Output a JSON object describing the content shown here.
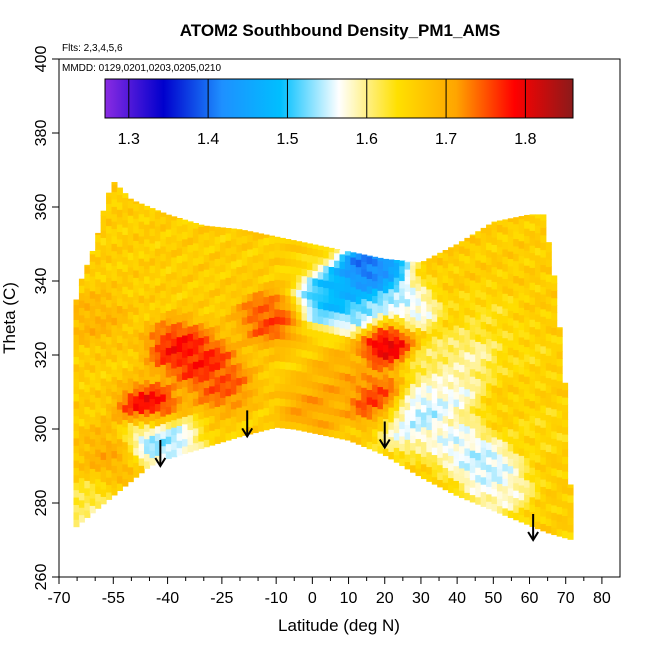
{
  "chart_data": {
    "type": "heatmap",
    "title": "ATOM2 Southbound Density_PM1_AMS",
    "subtitle_flights": "Flts: 2,3,4,5,6",
    "subtitle_dates": "MMDD: 0129,0201,0203,0205,0210",
    "xlabel": "Latitude (deg N)",
    "ylabel": "Theta (C)",
    "xlim": [
      -70,
      85
    ],
    "ylim": [
      260,
      400
    ],
    "x_ticks": [
      -70,
      -55,
      -40,
      -25,
      -10,
      0,
      10,
      20,
      30,
      40,
      50,
      60,
      70,
      80
    ],
    "x_minor_ticks": [
      -65,
      -60,
      -50,
      -45,
      -35,
      -30,
      -20,
      -15,
      -5,
      5,
      15,
      25,
      35,
      45,
      55,
      65,
      75
    ],
    "y_ticks": [
      260,
      280,
      300,
      320,
      340,
      360,
      380,
      400
    ],
    "colorbar": {
      "range": [
        1.27,
        1.86
      ],
      "ticks": [
        1.3,
        1.4,
        1.5,
        1.6,
        1.7,
        1.8
      ],
      "colors": [
        "#8a2be2",
        "#0000cd",
        "#1e90ff",
        "#00bfff",
        "#ffffff",
        "#ffe000",
        "#ffa500",
        "#ff0000",
        "#8b1a1a"
      ]
    },
    "arrows": [
      {
        "lat": -42,
        "theta": 290
      },
      {
        "lat": -18,
        "theta": 298
      },
      {
        "lat": 20,
        "theta": 295
      },
      {
        "lat": 61,
        "theta": 270
      }
    ],
    "field": {
      "top_boundary": [
        [
          -66,
          332
        ],
        [
          -64,
          340
        ],
        [
          -60,
          350
        ],
        [
          -57,
          362
        ],
        [
          -55,
          367
        ],
        [
          -50,
          362
        ],
        [
          -40,
          358
        ],
        [
          -30,
          355
        ],
        [
          -20,
          354
        ],
        [
          -10,
          352
        ],
        [
          0,
          350
        ],
        [
          10,
          348
        ],
        [
          20,
          346
        ],
        [
          30,
          345
        ],
        [
          40,
          350
        ],
        [
          50,
          356
        ],
        [
          60,
          358
        ],
        [
          64,
          358
        ],
        [
          67,
          340
        ],
        [
          70,
          310
        ],
        [
          72,
          270
        ]
      ],
      "bottom_boundary": [
        [
          -66,
          273
        ],
        [
          -60,
          278
        ],
        [
          -50,
          286
        ],
        [
          -45,
          290
        ],
        [
          -40,
          292
        ],
        [
          -30,
          295
        ],
        [
          -20,
          298
        ],
        [
          -10,
          300.5
        ],
        [
          -5,
          300
        ],
        [
          0,
          299
        ],
        [
          10,
          297
        ],
        [
          20,
          293
        ],
        [
          30,
          287
        ],
        [
          40,
          282
        ],
        [
          50,
          278
        ],
        [
          60,
          274
        ],
        [
          65,
          272
        ],
        [
          72,
          270
        ]
      ],
      "background_value": 1.66,
      "blobs": [
        {
          "lat": -30,
          "theta": 318,
          "value": 1.79
        },
        {
          "lat": -37,
          "theta": 322,
          "value": 1.8
        },
        {
          "lat": -25,
          "theta": 312,
          "value": 1.76
        },
        {
          "lat": -45,
          "theta": 305,
          "value": 1.83
        },
        {
          "lat": -12,
          "theta": 330,
          "value": 1.77
        },
        {
          "lat": 21,
          "theta": 324,
          "value": 1.84
        },
        {
          "lat": 18,
          "theta": 308,
          "value": 1.78
        },
        {
          "lat": -45,
          "theta": 298,
          "value": 1.5
        },
        {
          "lat": -40,
          "theta": 297,
          "value": 1.52
        },
        {
          "lat": 4,
          "theta": 335,
          "value": 1.47
        },
        {
          "lat": 9,
          "theta": 338,
          "value": 1.44
        },
        {
          "lat": 14,
          "theta": 332,
          "value": 1.5
        },
        {
          "lat": 18,
          "theta": 342,
          "value": 1.49
        },
        {
          "lat": 16,
          "theta": 343,
          "value": 1.28
        },
        {
          "lat": 26,
          "theta": 332,
          "value": 1.53
        },
        {
          "lat": 30,
          "theta": 305,
          "value": 1.52
        },
        {
          "lat": 26,
          "theta": 301,
          "value": 1.55
        },
        {
          "lat": 38,
          "theta": 310,
          "value": 1.55
        },
        {
          "lat": 40,
          "theta": 296,
          "value": 1.54
        },
        {
          "lat": 48,
          "theta": 290,
          "value": 1.52
        },
        {
          "lat": 52,
          "theta": 284,
          "value": 1.56
        },
        {
          "lat": 44,
          "theta": 320,
          "value": 1.58
        },
        {
          "lat": 33,
          "theta": 318,
          "value": 1.6
        },
        {
          "lat": 48,
          "theta": 330,
          "value": 1.63
        },
        {
          "lat": 58,
          "theta": 320,
          "value": 1.64
        },
        {
          "lat": 62,
          "theta": 300,
          "value": 1.64
        },
        {
          "lat": -62,
          "theta": 278,
          "value": 1.6
        },
        {
          "lat": -55,
          "theta": 294,
          "value": 1.71
        },
        {
          "lat": -60,
          "theta": 330,
          "value": 1.7
        },
        {
          "lat": 0,
          "theta": 306,
          "value": 1.72
        },
        {
          "lat": 8,
          "theta": 314,
          "value": 1.71
        }
      ]
    }
  }
}
